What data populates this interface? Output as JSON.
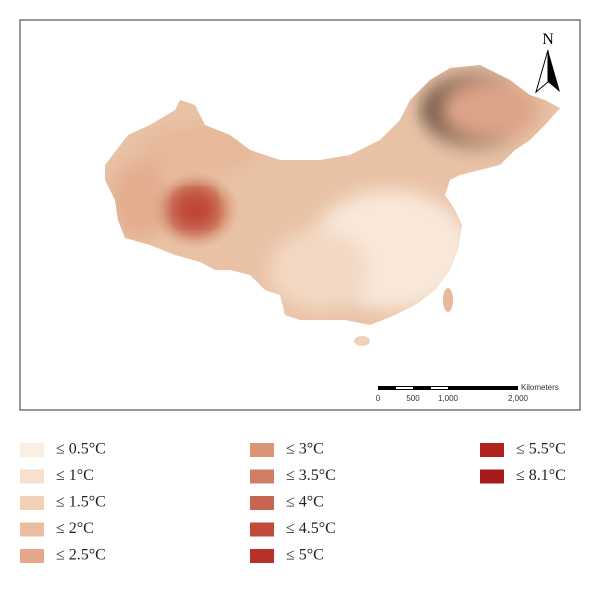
{
  "map": {
    "north_label": "N",
    "scale_bar": {
      "labels": [
        "0",
        "500",
        "1,000",
        "2,000"
      ],
      "unit": "Kilometers"
    }
  },
  "legend": {
    "items": [
      {
        "label": "≤ 0.5°C",
        "color": "#fbeee2"
      },
      {
        "label": "≤ 1°C",
        "color": "#f6e0cf"
      },
      {
        "label": "≤ 1.5°C",
        "color": "#f0d0b6"
      },
      {
        "label": "≤ 2°C",
        "color": "#e9bd9d"
      },
      {
        "label": "≤ 2.5°C",
        "color": "#e1a98a"
      },
      {
        "label": "≤ 3°C",
        "color": "#d89577"
      },
      {
        "label": "≤ 3.5°C",
        "color": "#cf7e63"
      },
      {
        "label": "≤ 4°C",
        "color": "#c76650"
      },
      {
        "label": "≤ 4.5°C",
        "color": "#c04b3c"
      },
      {
        "label": "≤ 5°C",
        "color": "#b8322a"
      },
      {
        "label": "≤ 5.5°C",
        "color": "#b1231f"
      },
      {
        "label": "≤ 8.1°C",
        "color": "#a81a1a"
      }
    ]
  }
}
